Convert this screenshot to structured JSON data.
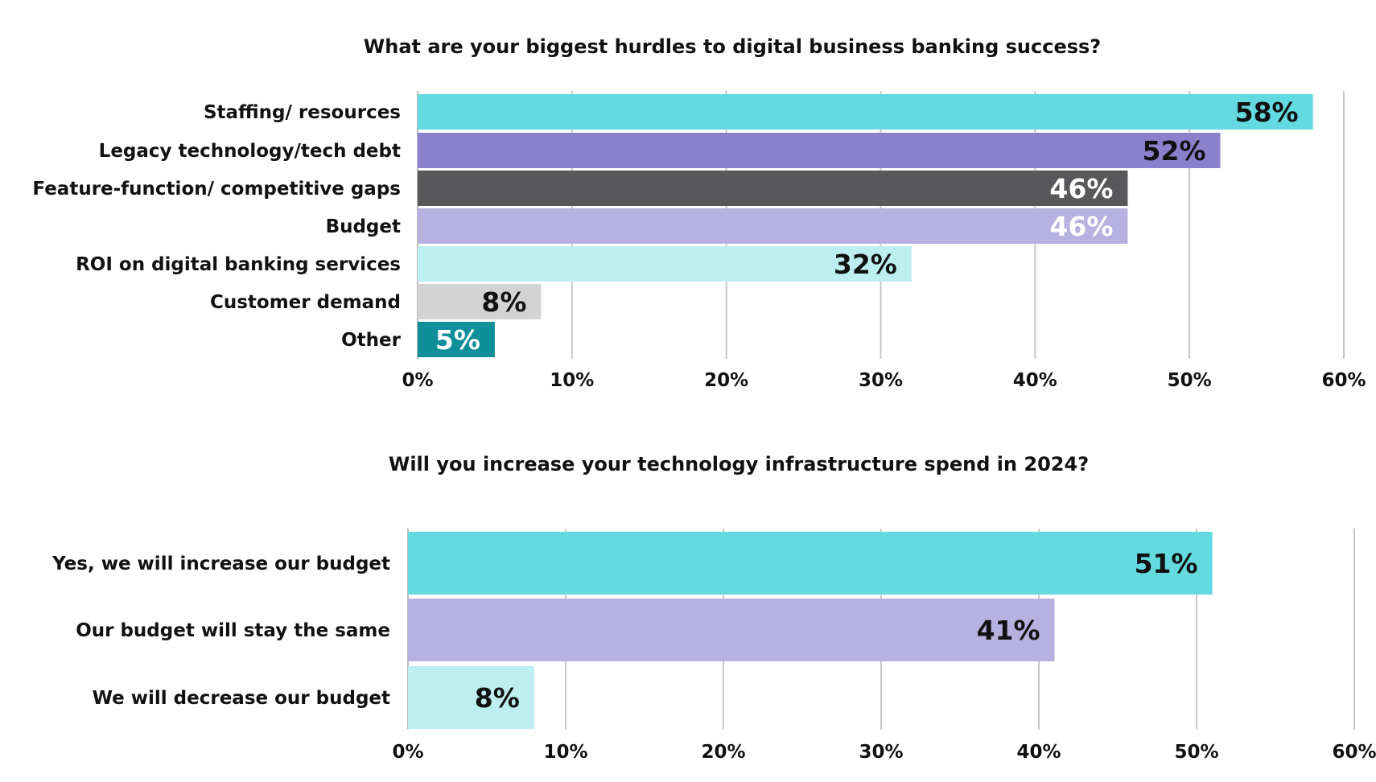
{
  "chart_data": [
    {
      "type": "bar",
      "orientation": "horizontal",
      "title": "What are your biggest hurdles to digital business banking success?",
      "categories": [
        "Staffing/ resources",
        "Legacy technology/tech debt",
        "Feature-function/ competitive gaps",
        "Budget",
        "ROI on digital banking services",
        "Customer demand",
        "Other"
      ],
      "values": [
        58,
        52,
        46,
        46,
        32,
        8,
        5
      ],
      "value_labels": [
        "58%",
        "52%",
        "46%",
        "46%",
        "32%",
        "8%",
        "5%"
      ],
      "bar_colors": [
        "#63dadf",
        "#8b80cc",
        "#58585b",
        "#b7b1e0",
        "#bdeef0",
        "#d3d3d3",
        "#0e8f9a"
      ],
      "label_colors": [
        "#111111",
        "#111111",
        "#ffffff",
        "#ffffff",
        "#111111",
        "#111111",
        "#ffffff"
      ],
      "xlim": [
        0,
        60
      ],
      "xticks": [
        0,
        10,
        20,
        30,
        40,
        50,
        60
      ],
      "xtick_labels": [
        "0%",
        "10%",
        "20%",
        "30%",
        "40%",
        "50%",
        "60%"
      ],
      "xlabel": "",
      "ylabel": "",
      "grid": true,
      "legend": "none"
    },
    {
      "type": "bar",
      "orientation": "horizontal",
      "title": "Will you increase your technology infrastructure spend in 2024?",
      "categories": [
        "Yes,  we will increase our budget",
        "Our budget will stay the same",
        "We will decrease our budget"
      ],
      "values": [
        51,
        41,
        8
      ],
      "value_labels": [
        "51%",
        "41%",
        "8%"
      ],
      "bar_colors": [
        "#63dadf",
        "#b7b1e0",
        "#bdeef0"
      ],
      "label_colors": [
        "#111111",
        "#111111",
        "#111111"
      ],
      "xlim": [
        0,
        60
      ],
      "xticks": [
        0,
        10,
        20,
        30,
        40,
        50,
        60
      ],
      "xtick_labels": [
        "0%",
        "10%",
        "20%",
        "30%",
        "40%",
        "50%",
        "60%"
      ],
      "xlabel": "",
      "ylabel": "",
      "grid": true,
      "legend": "none"
    }
  ]
}
